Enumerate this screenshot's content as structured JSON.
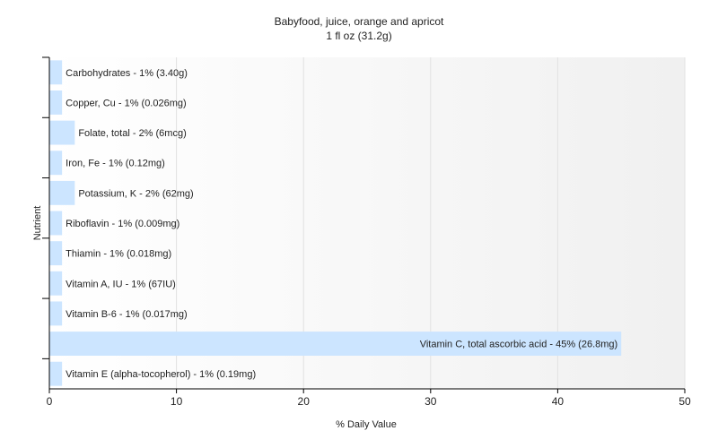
{
  "chart_data": {
    "type": "bar",
    "orientation": "horizontal",
    "title": "Babyfood, juice, orange and apricot",
    "subtitle": "1 fl oz (31.2g)",
    "xlabel": "% Daily Value",
    "ylabel": "Nutrient",
    "xlim": [
      0,
      50
    ],
    "xticks": [
      0,
      10,
      20,
      30,
      40,
      50
    ],
    "grid": "vertical",
    "bar_color": "#cce5ff",
    "background_color": "#ffffff",
    "categories": [
      "Carbohydrates",
      "Copper, Cu",
      "Folate, total",
      "Iron, Fe",
      "Potassium, K",
      "Riboflavin",
      "Thiamin",
      "Vitamin A, IU",
      "Vitamin B-6",
      "Vitamin C, total ascorbic acid",
      "Vitamin E (alpha-tocopherol)"
    ],
    "values": [
      1,
      1,
      2,
      1,
      2,
      1,
      1,
      1,
      1,
      45,
      1
    ],
    "labels": [
      "Carbohydrates - 1% (3.40g)",
      "Copper, Cu - 1% (0.026mg)",
      "Folate, total - 2% (6mcg)",
      "Iron, Fe - 1% (0.12mg)",
      "Potassium, K - 2% (62mg)",
      "Riboflavin - 1% (0.009mg)",
      "Thiamin - 1% (0.018mg)",
      "Vitamin A, IU - 1% (67IU)",
      "Vitamin B-6 - 1% (0.017mg)",
      "Vitamin C, total ascorbic acid - 45% (26.8mg)",
      "Vitamin E (alpha-tocopherol) - 1% (0.19mg)"
    ]
  }
}
